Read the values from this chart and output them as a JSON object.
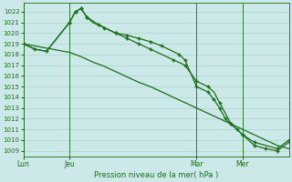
{
  "bg_color": "#cce8e8",
  "grid_color": "#aad4cc",
  "line_color": "#1a6e1a",
  "xlabel": "Pression niveau de la mer( hPa )",
  "ylim_bottom": 1008.5,
  "ylim_top": 1022.8,
  "yticks": [
    1009,
    1010,
    1011,
    1012,
    1013,
    1014,
    1015,
    1016,
    1017,
    1018,
    1019,
    1020,
    1021,
    1022
  ],
  "xtick_labels": [
    "Lun",
    "Jeu",
    "Mar",
    "Mer"
  ],
  "xtick_positions": [
    0,
    8,
    30,
    38
  ],
  "xlim": [
    0,
    46
  ],
  "vlines": [
    0,
    8,
    30,
    38
  ],
  "series1_x": [
    0,
    2,
    4,
    8,
    9,
    10,
    11,
    13,
    16,
    18,
    20,
    22,
    24,
    27,
    28,
    30,
    32,
    33,
    34,
    35,
    36,
    37,
    38,
    40,
    44,
    46
  ],
  "series1_y": [
    1019,
    1018.5,
    1018.3,
    1021,
    1022,
    1022.3,
    1021.5,
    1020.8,
    1020,
    1019.8,
    1019.5,
    1019.2,
    1018.8,
    1018,
    1017.5,
    1015,
    1014.5,
    1013.8,
    1013,
    1012,
    1011.5,
    1011,
    1010.5,
    1009.8,
    1009.2,
    1010
  ],
  "series2_x": [
    0,
    2,
    4,
    6,
    8,
    10,
    12,
    14,
    16,
    18,
    20,
    22,
    24,
    26,
    28,
    30,
    32,
    34,
    36,
    38,
    40,
    42,
    44,
    46
  ],
  "series2_y": [
    1019,
    1018.8,
    1018.6,
    1018.4,
    1018.2,
    1017.8,
    1017.3,
    1016.9,
    1016.4,
    1015.9,
    1015.4,
    1015,
    1014.5,
    1014,
    1013.5,
    1013,
    1012.5,
    1012,
    1011.5,
    1011,
    1010.5,
    1010,
    1009.5,
    1009.2
  ],
  "series3_x": [
    0,
    2,
    4,
    8,
    9,
    10,
    11,
    12,
    14,
    16,
    18,
    20,
    22,
    24,
    26,
    28,
    30,
    32,
    33,
    34,
    35,
    36,
    37,
    38,
    40,
    42,
    44,
    46
  ],
  "series3_y": [
    1019,
    1018.5,
    1018.3,
    1021,
    1022,
    1022.3,
    1021.5,
    1021,
    1020.5,
    1020,
    1019.5,
    1019,
    1018.5,
    1018,
    1017.5,
    1017,
    1015.5,
    1015,
    1014.5,
    1013.5,
    1012.5,
    1011.5,
    1011,
    1010.5,
    1009.5,
    1009.2,
    1009,
    1009.8
  ],
  "markers1_x": [
    0,
    2,
    4,
    8,
    9,
    10,
    11,
    13,
    16,
    18,
    20,
    22,
    24,
    27,
    28,
    30,
    32,
    33,
    34,
    35,
    36,
    37,
    38,
    40,
    44,
    46
  ],
  "markers1_y": [
    1019,
    1018.5,
    1018.3,
    1021,
    1022,
    1022.3,
    1021.5,
    1020.8,
    1020,
    1019.8,
    1019.5,
    1019.2,
    1018.8,
    1018,
    1017.5,
    1015,
    1014.5,
    1013.8,
    1013,
    1012,
    1011.5,
    1011,
    1010.5,
    1009.8,
    1009.2,
    1010
  ],
  "markers3_x": [
    0,
    8,
    9,
    10,
    11,
    14,
    16,
    18,
    20,
    22,
    26,
    28,
    30,
    32,
    34,
    36,
    38,
    40,
    42,
    44,
    46
  ],
  "markers3_y": [
    1019,
    1021,
    1022,
    1022.3,
    1021.5,
    1020.5,
    1020,
    1019.5,
    1019,
    1018.5,
    1017.5,
    1017,
    1015.5,
    1015,
    1013.5,
    1011.5,
    1010.5,
    1009.5,
    1009.2,
    1009,
    1009.8
  ]
}
